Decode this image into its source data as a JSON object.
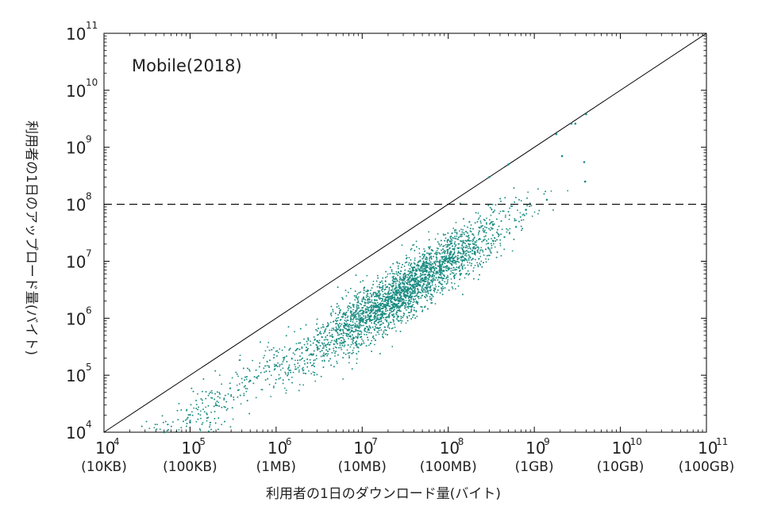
{
  "chart_data": {
    "type": "scatter",
    "title": "Mobile(2018)",
    "xlabel": "利用者の1日のダウンロード量(バイト)",
    "ylabel": "利用者の1日のアップロード量(バイト)",
    "x_scale": "log",
    "y_scale": "log",
    "xlim": [
      10000,
      100000000000
    ],
    "ylim": [
      10000,
      100000000000
    ],
    "x_ticks": [
      {
        "value": 10000,
        "base": "10",
        "exp": "4",
        "unit": "(10KB)"
      },
      {
        "value": 100000,
        "base": "10",
        "exp": "5",
        "unit": "(100KB)"
      },
      {
        "value": 1000000,
        "base": "10",
        "exp": "6",
        "unit": "(1MB)"
      },
      {
        "value": 10000000,
        "base": "10",
        "exp": "7",
        "unit": "(10MB)"
      },
      {
        "value": 100000000,
        "base": "10",
        "exp": "8",
        "unit": "(100MB)"
      },
      {
        "value": 1000000000,
        "base": "10",
        "exp": "9",
        "unit": "(1GB)"
      },
      {
        "value": 10000000000,
        "base": "10",
        "exp": "10",
        "unit": "(10GB)"
      },
      {
        "value": 100000000000,
        "base": "10",
        "exp": "11",
        "unit": "(100GB)"
      }
    ],
    "y_ticks": [
      {
        "value": 10000,
        "base": "10",
        "exp": "4"
      },
      {
        "value": 100000,
        "base": "10",
        "exp": "5"
      },
      {
        "value": 1000000,
        "base": "10",
        "exp": "6"
      },
      {
        "value": 10000000,
        "base": "10",
        "exp": "7"
      },
      {
        "value": 100000000,
        "base": "10",
        "exp": "8"
      },
      {
        "value": 1000000000,
        "base": "10",
        "exp": "9"
      },
      {
        "value": 10000000000,
        "base": "10",
        "exp": "10"
      },
      {
        "value": 100000000000,
        "base": "10",
        "exp": "11"
      }
    ],
    "reference_lines": [
      {
        "kind": "diagonal",
        "equation": "y = x",
        "style": "solid"
      },
      {
        "kind": "horizontal",
        "y": 100000000,
        "style": "dashed"
      }
    ],
    "marker_color": "#1a8c82",
    "line_color": "#000000",
    "grid": false,
    "legend": "none",
    "series": [
      {
        "distribution": "upload ≈ 0.1 × download, dense core near 3e7–1e8 download",
        "points": [
          [
            30000000,
            3000000
          ],
          [
            50000000,
            5000000
          ],
          [
            80000000,
            8000000
          ],
          [
            100000000,
            10000000
          ],
          [
            150000000,
            15000000
          ],
          [
            200000000,
            20000000
          ],
          [
            60000000,
            4000000
          ],
          [
            40000000,
            3500000
          ],
          [
            20000000,
            2000000
          ],
          [
            10000000,
            1200000
          ],
          [
            5000000,
            600000
          ],
          [
            3000000,
            400000
          ],
          [
            1000000,
            150000
          ],
          [
            500000,
            80000
          ],
          [
            200000,
            30000
          ],
          [
            100000,
            15000
          ],
          [
            50000,
            10000
          ],
          [
            2700000000,
            2600000000
          ],
          [
            3000000000,
            2600000000
          ],
          [
            4000000000,
            3800000000
          ],
          [
            1800000000,
            1700000000
          ],
          [
            2100000000,
            700000000
          ],
          [
            300000000,
            300000000
          ],
          [
            500000000,
            500000000
          ],
          [
            3800000000,
            550000000
          ],
          [
            3900000000,
            250000000
          ],
          [
            1400000000,
            120000000
          ],
          [
            800000000,
            80000000
          ]
        ]
      }
    ]
  }
}
